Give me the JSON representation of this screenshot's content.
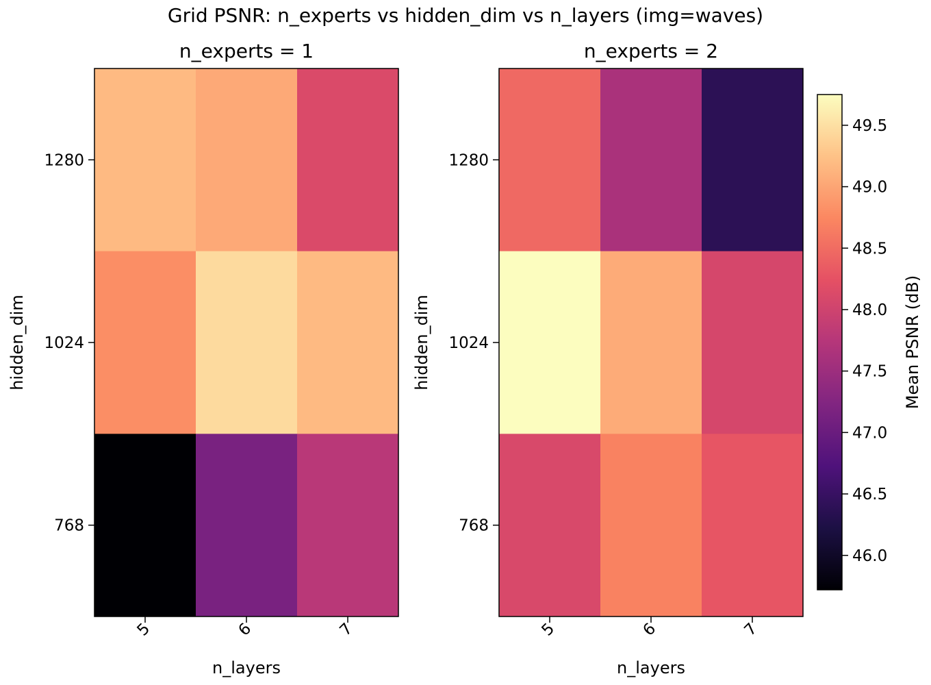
{
  "chart_data": {
    "type": "heatmap",
    "title": "Grid PSNR: n_experts vs hidden_dim vs n_layers (img=waves)",
    "colormap": "magma",
    "colorbar": {
      "label": "Mean PSNR (dB)",
      "range": [
        45.72,
        49.75
      ],
      "ticks": [
        "46.0",
        "46.5",
        "47.0",
        "47.5",
        "48.0",
        "48.5",
        "49.0",
        "49.5"
      ]
    },
    "panels": [
      {
        "title": "n_experts = 1",
        "xlabel": "n_layers",
        "ylabel": "hidden_dim",
        "x": [
          "5",
          "6",
          "7"
        ],
        "y": [
          "1280",
          "1024",
          "768"
        ],
        "values": [
          [
            49.18,
            49.03,
            48.12
          ],
          [
            48.8,
            49.45,
            49.18
          ],
          [
            45.72,
            47.15,
            47.78
          ]
        ]
      },
      {
        "title": "n_experts = 2",
        "xlabel": "n_layers",
        "ylabel": "hidden_dim",
        "x": [
          "5",
          "6",
          "7"
        ],
        "y": [
          "1280",
          "1024",
          "768"
        ],
        "values": [
          [
            48.47,
            47.63,
            46.38
          ],
          [
            49.75,
            49.05,
            48.07
          ],
          [
            48.1,
            48.7,
            48.28
          ]
        ]
      }
    ]
  }
}
